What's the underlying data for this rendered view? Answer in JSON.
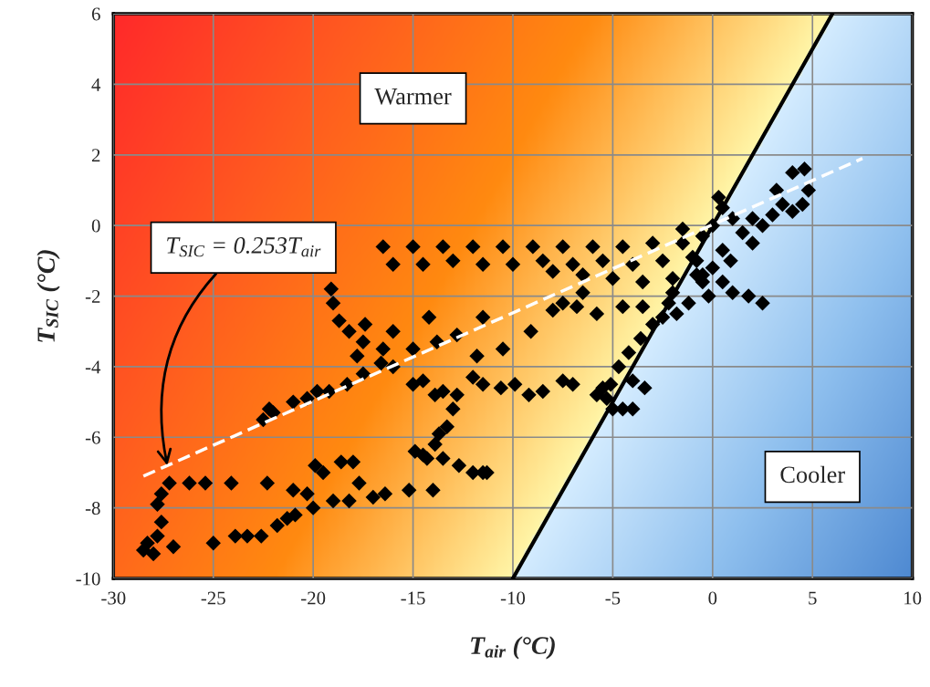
{
  "chart_data": {
    "type": "scatter",
    "xlabel": "T$_{air}$ (°C)",
    "ylabel": "T$_{SIC}$ (°C)",
    "xlim": [
      -30,
      10
    ],
    "ylim": [
      -10,
      6
    ],
    "xticks": [
      -30,
      -25,
      -20,
      -15,
      -10,
      -5,
      0,
      5,
      10
    ],
    "yticks": [
      -10,
      -8,
      -6,
      -4,
      -2,
      0,
      2,
      4,
      6
    ],
    "grid": true,
    "legend": false,
    "marker": "diamond",
    "series": [
      {
        "type": "line",
        "color": "#000000",
        "line_style": "solid",
        "marker": "none",
        "x": [
          -10,
          6
        ],
        "values": [
          -10,
          6
        ]
      },
      {
        "color": "#000000",
        "x": [
          -28.5,
          -28.3,
          -28.0,
          -27.8,
          -27.6,
          -27.8,
          -27.6,
          -27.2,
          -26.2,
          -25.4,
          -24.1,
          -22.3,
          -21.0,
          -20.3,
          -19.9,
          -19.5,
          -18.6,
          -18.0,
          -17.7,
          -16.4,
          -15.2,
          -14.0,
          -12.0,
          -11.3,
          -27.0,
          -25.0,
          -23.9,
          -23.3,
          -22.6,
          -21.8,
          -21.3,
          -20.9,
          -20.0,
          -19.0,
          -18.2,
          -17.0,
          -22.2,
          -22.5,
          -22.0,
          -21.0,
          -20.3,
          -19.8,
          -19.2,
          -18.3,
          -17.5,
          -17.8,
          -17.5,
          -16.6,
          -16.0,
          -15.0,
          -14.5,
          -13.9,
          -13.5,
          -12.8,
          -12.0,
          -11.5,
          -10.6,
          -9.9,
          -9.2,
          -8.5,
          -7.5,
          -7.0,
          -5.5,
          -5.0,
          -4.0,
          -3.4,
          -5.8,
          -19.1,
          -19.0,
          -18.7,
          -18.2,
          -17.4,
          -16.5,
          -16.0,
          -15.0,
          -14.2,
          -13.8,
          -12.8,
          -11.5,
          -11.8,
          -10.5,
          -9.1,
          -8.0,
          -13.0,
          -13.3,
          -13.9,
          -14.5,
          -14.9,
          -14.3,
          -13.5,
          -12.7,
          -11.5,
          -13.7,
          -16.5,
          -15,
          -13.5,
          -12,
          -10.5,
          -9,
          -7.5,
          -6,
          -4.5,
          -3,
          -1.5,
          -16.0,
          -14.5,
          -13,
          -11.5,
          -10,
          -8.5,
          -7,
          -5.5,
          -4,
          -2.5,
          -1,
          -5,
          -3.5,
          -2,
          -0.5,
          -6.5,
          -8,
          -7.5,
          -6.8,
          -6.5,
          -5.8,
          -4.5,
          -3.5,
          -2.2,
          -1.2,
          0,
          0.5,
          0.3,
          1.0,
          1.5,
          2.0,
          2.5,
          3.0,
          3.5,
          4.0,
          4.5,
          4.8,
          4.6,
          4.0,
          3.2,
          2.0,
          0.5,
          -0.5,
          -1.5,
          -0.8,
          -0.5,
          0.5,
          1,
          1.8,
          2.5,
          -2,
          -1.8,
          -2.5,
          -3.0,
          -3.6,
          -4.2,
          -4.7,
          -5.1,
          -5.3,
          -4.5,
          -4.0,
          0,
          0.9,
          -0.8,
          -0.2
        ],
        "values": [
          -9.2,
          -9.0,
          -9.3,
          -8.8,
          -8.4,
          -7.9,
          -7.6,
          -7.3,
          -7.3,
          -7.3,
          -7.3,
          -7.3,
          -7.5,
          -7.6,
          -6.8,
          -7.0,
          -6.7,
          -6.7,
          -7.3,
          -7.6,
          -7.5,
          -7.5,
          -7.0,
          -7.0,
          -9.1,
          -9.0,
          -8.8,
          -8.8,
          -8.8,
          -8.5,
          -8.3,
          -8.2,
          -8.0,
          -7.8,
          -7.8,
          -7.7,
          -5.2,
          -5.5,
          -5.3,
          -5.0,
          -4.9,
          -4.7,
          -4.7,
          -4.5,
          -4.2,
          -3.7,
          -3.3,
          -3.9,
          -4.0,
          -4.5,
          -4.4,
          -4.8,
          -4.7,
          -4.8,
          -4.3,
          -4.5,
          -4.6,
          -4.5,
          -4.8,
          -4.7,
          -4.4,
          -4.5,
          -4.6,
          -5.2,
          -4.4,
          -4.6,
          -4.8,
          -1.8,
          -2.2,
          -2.7,
          -3.0,
          -2.8,
          -3.5,
          -3.0,
          -3.5,
          -2.6,
          -3.3,
          -3.1,
          -2.6,
          -3.7,
          -3.5,
          -3.0,
          -2.4,
          -5.2,
          -5.7,
          -6.2,
          -6.5,
          -6.4,
          -6.6,
          -6.6,
          -6.8,
          -7.0,
          -5.9,
          -0.6,
          -0.6,
          -0.6,
          -0.6,
          -0.6,
          -0.6,
          -0.6,
          -0.6,
          -0.6,
          -0.5,
          -0.5,
          -1.1,
          -1.1,
          -1.0,
          -1.1,
          -1.1,
          -1.0,
          -1.1,
          -1.0,
          -1.1,
          -1.0,
          -0.9,
          -1.5,
          -1.6,
          -1.5,
          -1.4,
          -1.4,
          -1.3,
          -2.2,
          -2.3,
          -1.9,
          -2.5,
          -2.3,
          -2.3,
          -2.2,
          -2.2,
          0,
          0.5,
          0.8,
          0.2,
          -0.2,
          -0.5,
          0.0,
          0.3,
          0.6,
          0.4,
          0.6,
          1.0,
          1.6,
          1.5,
          1.0,
          0.2,
          -0.7,
          -0.3,
          -0.1,
          -1.4,
          -1.6,
          -1.6,
          -1.9,
          -2.0,
          -2.2,
          -1.9,
          -2.5,
          -2.6,
          -2.8,
          -3.2,
          -3.6,
          -4.0,
          -4.5,
          -4.9,
          -5.2,
          -5.2,
          -1.2,
          -1.0,
          -1.0,
          -2.0
        ]
      },
      {
        "type": "line",
        "color": "#ffffff",
        "line_style": "dashed",
        "marker": "none",
        "x": [
          -28.5,
          7.5
        ],
        "values": [
          -7.1,
          1.9
        ]
      }
    ],
    "annotations": [
      "Warmer",
      "Cooler",
      {
        "text": "T$_{SIC}$ = 0.253T$_{air}$",
        "x": -27.3,
        "y": -6.8
      }
    ]
  }
}
